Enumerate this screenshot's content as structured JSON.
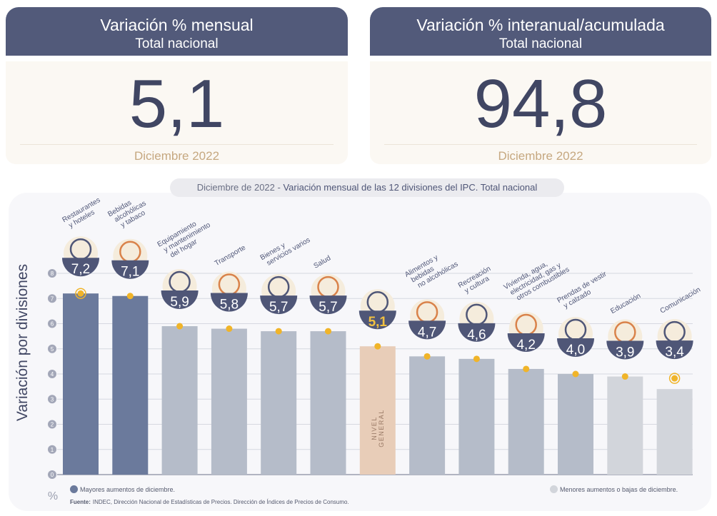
{
  "cards": [
    {
      "title": "Variación % mensual",
      "subtitle": "Total nacional",
      "value": "5,1",
      "date": "Diciembre 2022"
    },
    {
      "title": "Variación % interanual/acumulada",
      "subtitle": "Total nacional",
      "value": "94,8",
      "date": "Diciembre 2022"
    }
  ],
  "chart_title": {
    "date": "Diciembre de 2022",
    "sep": " - ",
    "text": "Variación mensual de las 12 divisiones del IPC. Total nacional"
  },
  "chart_data": {
    "type": "bar",
    "ylabel": "Variación por divisiones",
    "unit": "%",
    "ylim": [
      0,
      8
    ],
    "yticks": [
      "0",
      "1",
      "2",
      "3",
      "4",
      "5",
      "6",
      "7",
      "8"
    ],
    "grid": true,
    "categories": [
      [
        "Restaurantes",
        "y hoteles"
      ],
      [
        "Bebidas",
        "alcohólicas",
        "y tabaco"
      ],
      [
        "Equipamiento",
        "y mantenimiento",
        "del hogar"
      ],
      [
        "Transporte"
      ],
      [
        "Bienes y",
        "servicios varios"
      ],
      [
        "Salud"
      ],
      [],
      [
        "Alimentos y",
        "bebidas",
        "no alcohólicas"
      ],
      [
        "Recreación",
        "y cultura"
      ],
      [
        "Vivienda, agua,",
        "electricidad, gas y",
        "otros combustibles"
      ],
      [
        "Prendas de vestir",
        "y calzado"
      ],
      [
        "Educación"
      ],
      [
        "Comunicación"
      ]
    ],
    "values": [
      7.2,
      7.1,
      5.9,
      5.8,
      5.7,
      5.7,
      5.1,
      4.7,
      4.6,
      4.2,
      4.0,
      3.9,
      3.4
    ],
    "value_labels": [
      "7,2",
      "7,1",
      "5,9",
      "5,8",
      "5,7",
      "5,7",
      "5,1",
      "4,7",
      "4,6",
      "4,2",
      "4,0",
      "3,9",
      "3,4"
    ],
    "groups": [
      "top",
      "top",
      "mid",
      "mid",
      "mid",
      "mid",
      "general",
      "mid",
      "mid",
      "mid",
      "mid",
      "bottom",
      "bottom"
    ],
    "general_label": [
      "NIVEL",
      "GENERAL"
    ],
    "icons": [
      "restaurant-icon",
      "wine-bottle-icon",
      "washing-machine-icon",
      "sube-card-icon",
      "scissors-comb-icon",
      "first-aid-icon",
      "shopping-bag-icon",
      "roast-chicken-icon",
      "beach-umbrella-icon",
      "lightbulb-key-icon",
      "tshirt-shoe-icon",
      "notebook-icon",
      "smartphone-icon"
    ],
    "colors": {
      "top": "#6b7a9c",
      "mid": "#b5bcc9",
      "general": "#e8cdb8",
      "bottom": "#d2d5db",
      "badge": "#4f5677",
      "dot": "#f0b429",
      "general_text": "#f0c040"
    }
  },
  "legend": {
    "high": "Mayores aumentos de diciembre.",
    "low": "Menores aumentos o bajas de diciembre."
  },
  "source": {
    "label": "Fuente:",
    "text": " INDEC, Dirección Nacional de Estadísticas de Precios. Dirección de Índices de Precios de Consumo."
  }
}
